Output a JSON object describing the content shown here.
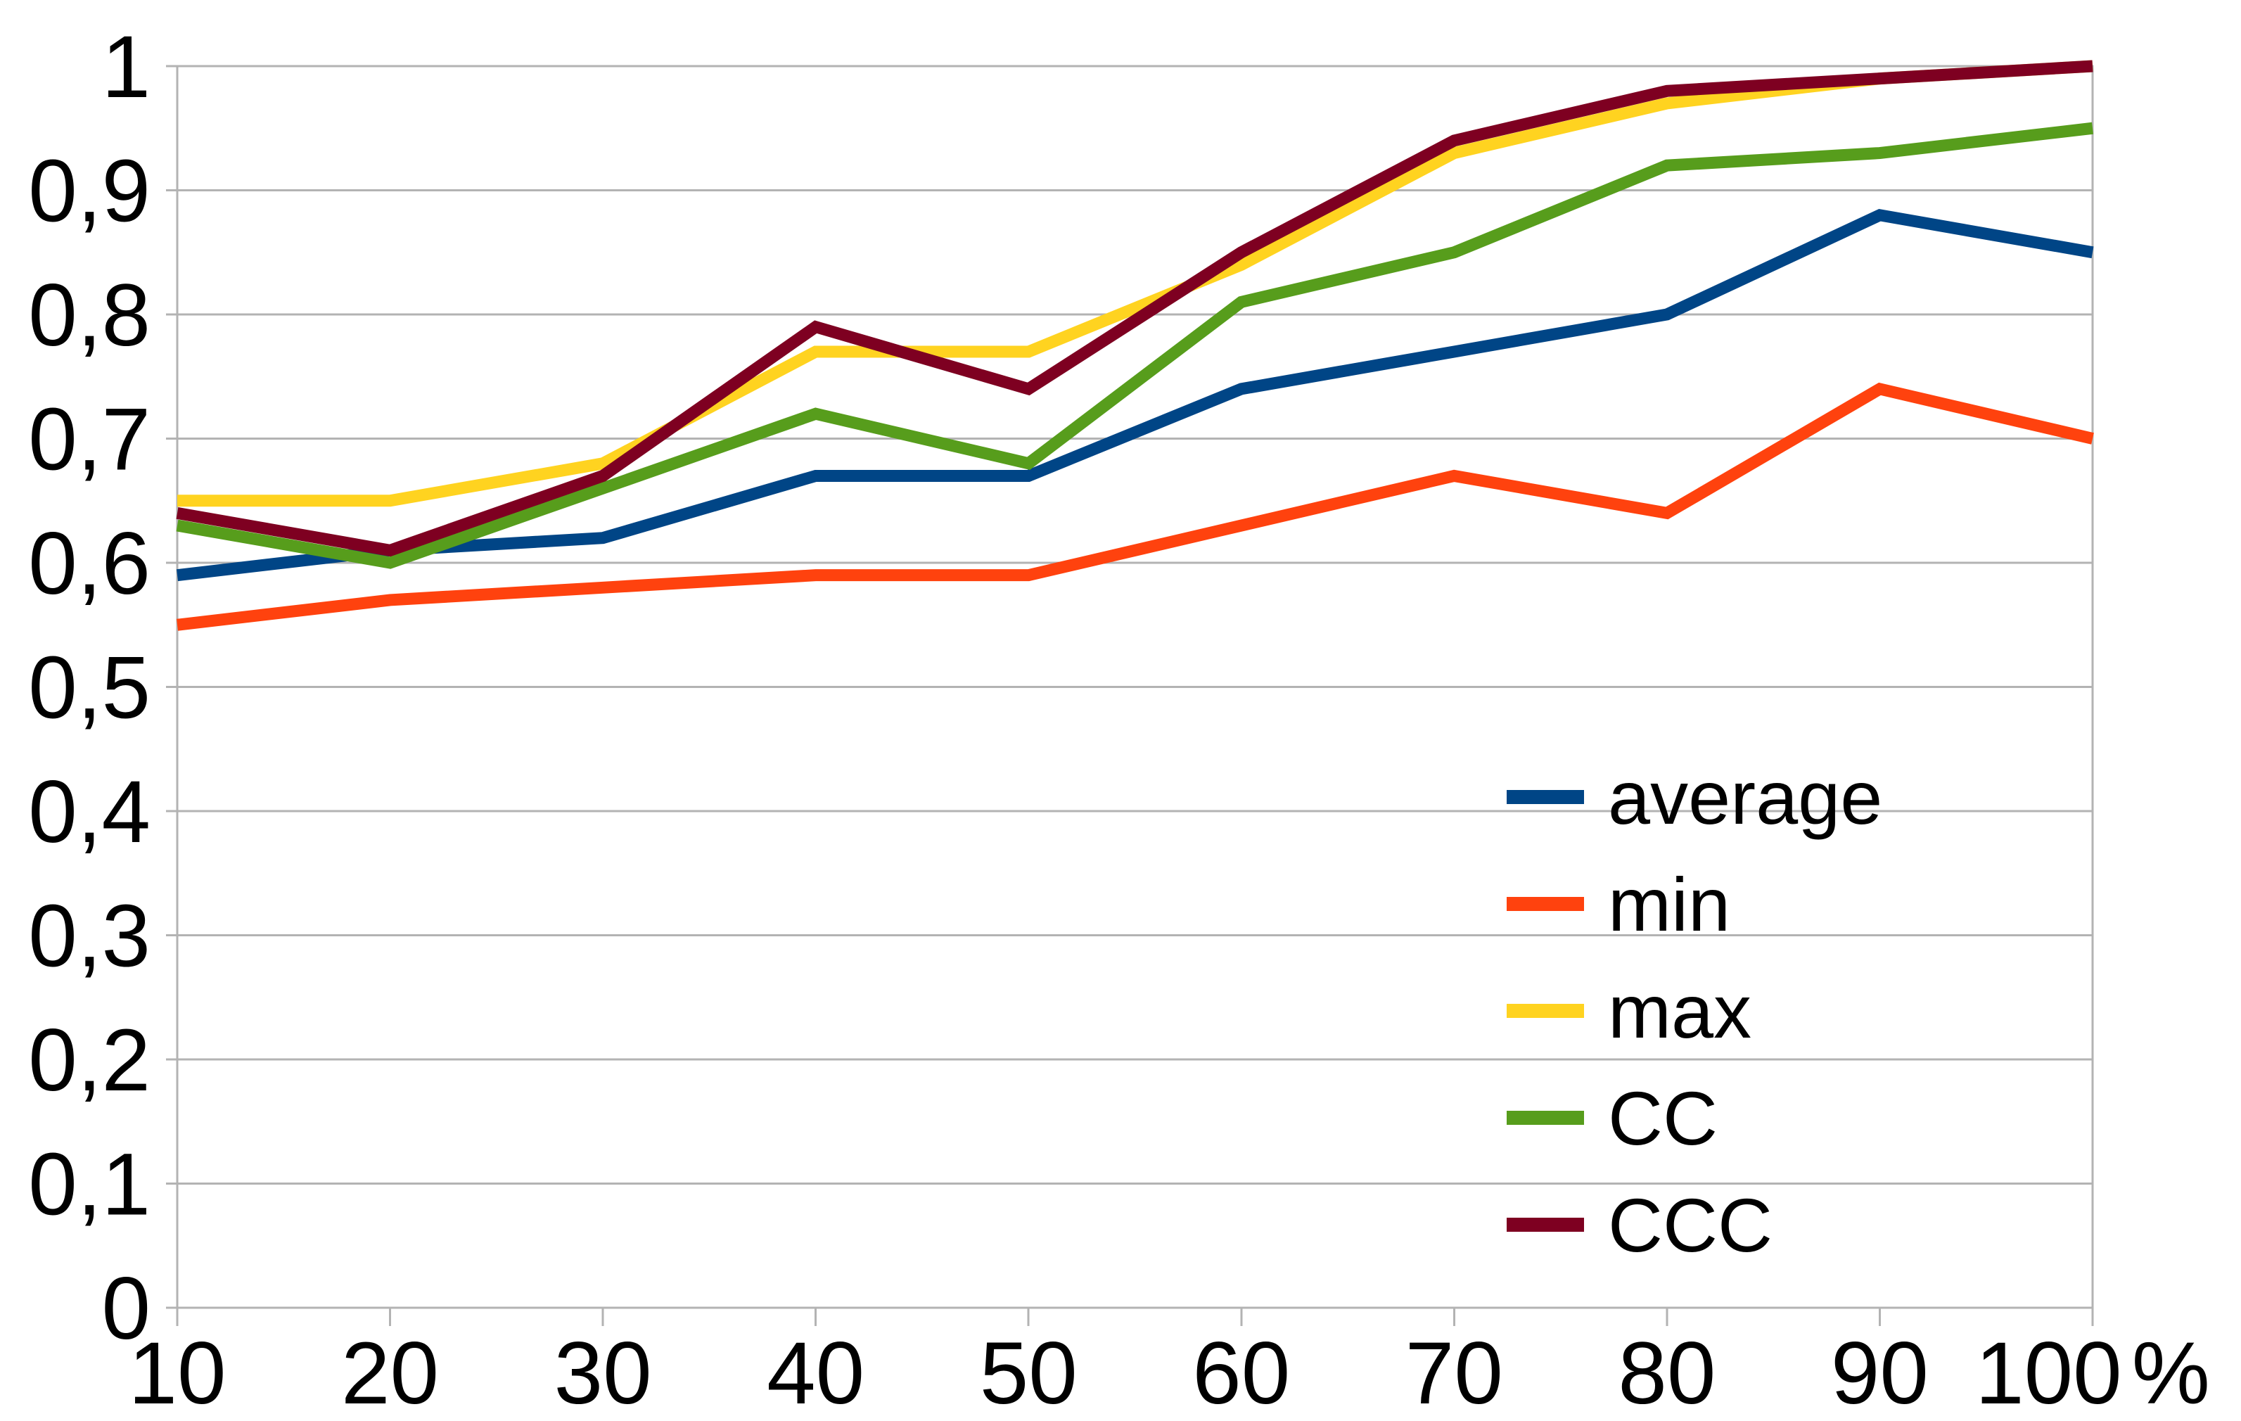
{
  "chart_data": {
    "type": "line",
    "title": "",
    "xlabel": "",
    "ylabel": "",
    "x": [
      10,
      20,
      30,
      40,
      50,
      60,
      70,
      80,
      90,
      100
    ],
    "x_tick_labels": [
      "10",
      "20",
      "30",
      "40",
      "50",
      "60",
      "70",
      "80",
      "90",
      "100"
    ],
    "x_suffix": "%",
    "ylim": [
      0,
      1
    ],
    "ytick_step": 0.1,
    "y_tick_labels": [
      "0",
      "0,1",
      "0,2",
      "0,3",
      "0,4",
      "0,5",
      "0,6",
      "0,7",
      "0,8",
      "0,9",
      "1"
    ],
    "grid": "horizontal",
    "legend_position": "inside-right-middle",
    "series": [
      {
        "name": "average",
        "color": "#004586",
        "values": [
          0.59,
          0.61,
          0.62,
          0.67,
          0.67,
          0.74,
          0.77,
          0.8,
          0.88,
          0.85
        ]
      },
      {
        "name": "min",
        "color": "#FF420E",
        "values": [
          0.55,
          0.57,
          0.58,
          0.59,
          0.59,
          0.63,
          0.67,
          0.64,
          0.74,
          0.7
        ]
      },
      {
        "name": "max",
        "color": "#FFD320",
        "values": [
          0.65,
          0.65,
          0.68,
          0.77,
          0.77,
          0.84,
          0.93,
          0.97,
          0.99,
          1.0
        ]
      },
      {
        "name": "CC",
        "color": "#579D1C",
        "values": [
          0.63,
          0.6,
          0.66,
          0.72,
          0.68,
          0.81,
          0.85,
          0.92,
          0.93,
          0.95
        ]
      },
      {
        "name": "CCC",
        "color": "#7E0021",
        "values": [
          0.64,
          0.61,
          0.67,
          0.79,
          0.74,
          0.85,
          0.94,
          0.98,
          0.99,
          1.0
        ]
      }
    ],
    "colors": {
      "grid": "#b3b3b3",
      "axis": "#b3b3b3",
      "text": "#000000",
      "background": "#ffffff"
    }
  }
}
